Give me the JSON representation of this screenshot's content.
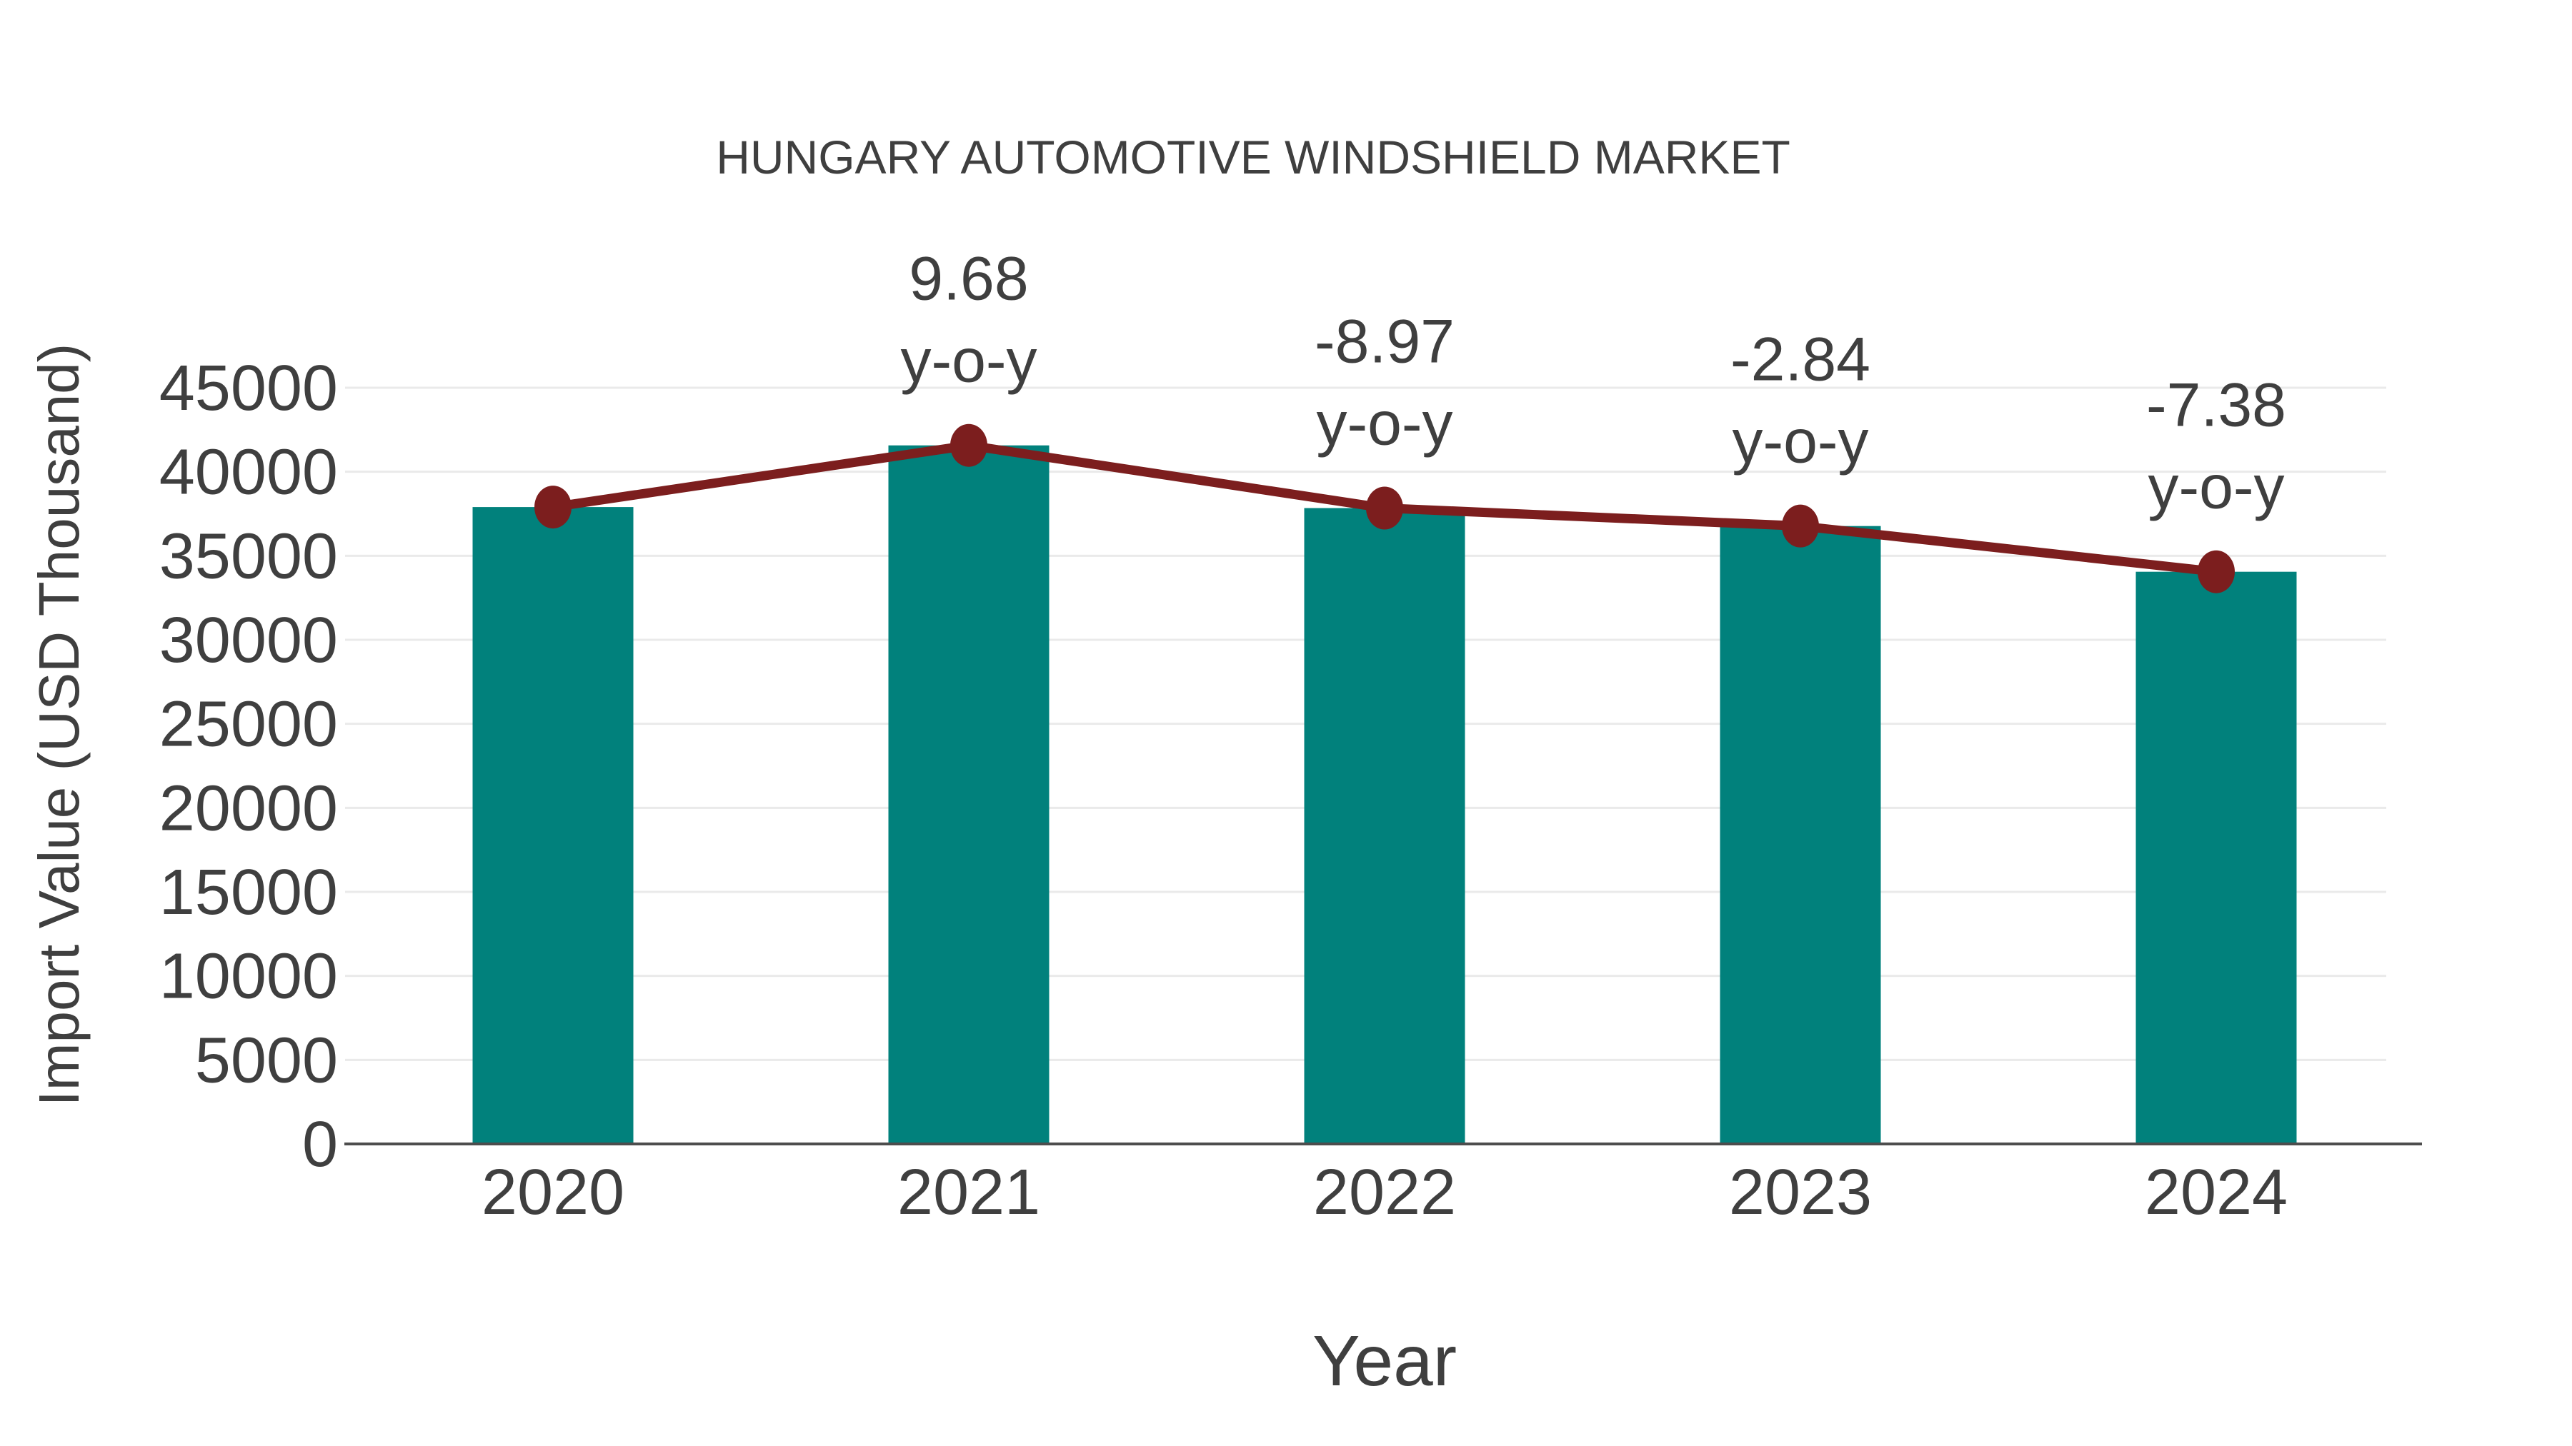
{
  "colors": {
    "background": "#ffffff",
    "bar": "#01817C",
    "line": "#7C1E1E",
    "text": "#3F3F3F",
    "grid": "#EAEAEA",
    "axis": "#4D4D4D"
  },
  "chart_data": {
    "type": "bar",
    "combo": [
      "bar",
      "line"
    ],
    "title": "HUNGARY AUTOMOTIVE WINDSHIELD MARKET",
    "xlabel": "Year",
    "ylabel": "Import Value (USD Thousand)",
    "categories": [
      "2020",
      "2021",
      "2022",
      "2023",
      "2024"
    ],
    "series": [
      {
        "name": "Import Value",
        "type": "bar",
        "color": "#01817C",
        "values": [
          37900,
          41570,
          37840,
          36770,
          34050
        ]
      },
      {
        "name": "Import Value trend",
        "type": "line",
        "color": "#7C1E1E",
        "values": [
          37900,
          41570,
          37840,
          36770,
          34050
        ]
      }
    ],
    "annotations": [
      {
        "category": "2021",
        "value_label": "9.68",
        "suffix_label": "y-o-y"
      },
      {
        "category": "2022",
        "value_label": "-8.97",
        "suffix_label": "y-o-y"
      },
      {
        "category": "2023",
        "value_label": "-2.84",
        "suffix_label": "y-o-y"
      },
      {
        "category": "2024",
        "value_label": "-7.38",
        "suffix_label": "y-o-y"
      }
    ],
    "ylim": [
      0,
      45000
    ],
    "yticks": [
      0,
      5000,
      10000,
      15000,
      20000,
      25000,
      30000,
      35000,
      40000,
      45000
    ],
    "grid": "horizontal",
    "legend_position": "none"
  }
}
